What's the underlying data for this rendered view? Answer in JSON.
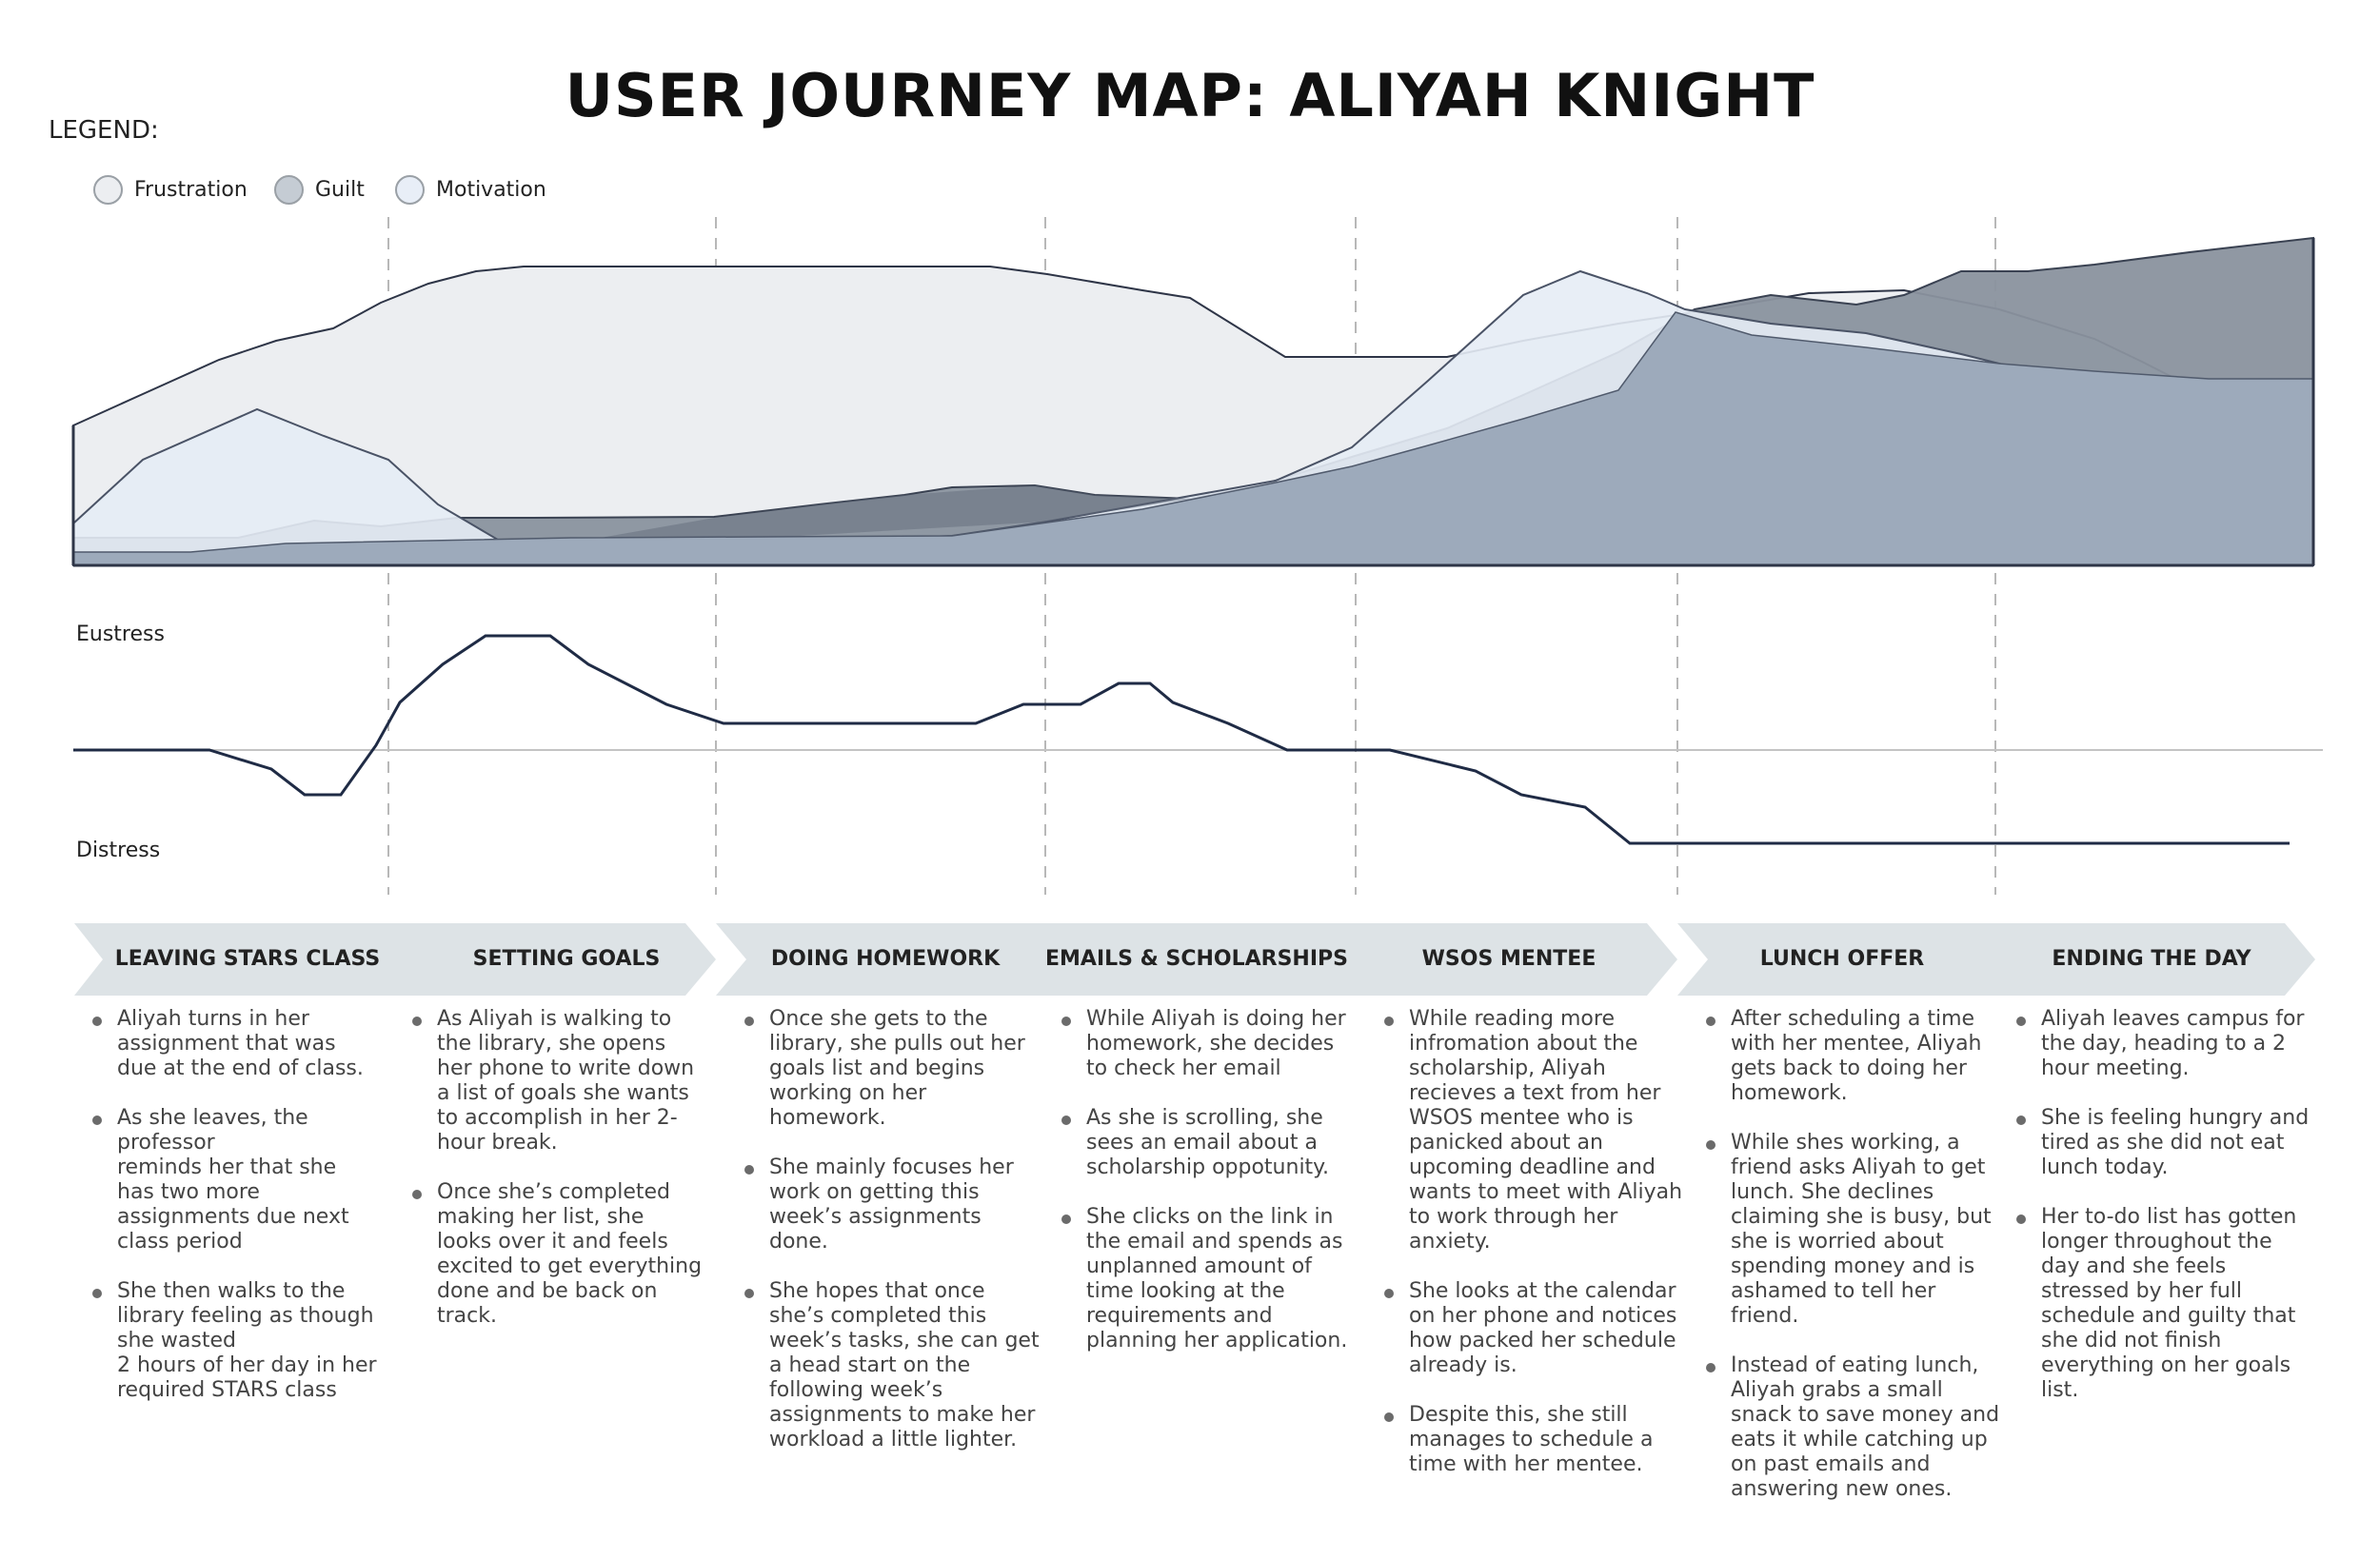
{
  "title": "USER JOURNEY MAP: ALIYAH KNIGHT",
  "legend": {
    "label": "LEGEND:",
    "items": [
      {
        "name": "Frustration",
        "color": "#eceef1"
      },
      {
        "name": "Guilt",
        "color": "#c5ccd4"
      },
      {
        "name": "Motivation",
        "color": "#e8eef7"
      }
    ]
  },
  "stress_axis": {
    "top_label": "Eustress",
    "bottom_label": "Distress"
  },
  "stages": [
    {
      "label": "LEAVING STARS CLASS",
      "bullets": [
        "Aliyah turns in her assignment that was due at the end of class.",
        "As she leaves, the professor\nreminds her that she has two more assignments due next class period",
        "She then walks to the library feeling as though she wasted\n2 hours of her day in her required STARS class"
      ]
    },
    {
      "label": "SETTING GOALS",
      "bullets": [
        "As Aliyah is walking to the library, she opens her phone to write down a list of goals she wants to accomplish in her 2-hour break.",
        "Once she’s completed making her list, she looks over it and feels excited to get everything done and be back on track."
      ]
    },
    {
      "label": "DOING HOMEWORK",
      "bullets": [
        "Once she gets to the library, she pulls out her goals list and begins working on her homework.",
        "She mainly focuses her work on getting this week’s assignments done.",
        "She hopes that once she’s completed this week’s tasks, she can get a head start on the following week’s assignments to make her workload a little lighter."
      ]
    },
    {
      "label": "EMAILS & SCHOLARSHIPS",
      "bullets": [
        "While Aliyah is doing her homework, she decides to check her email",
        "As she is scrolling, she sees an email about a scholarship oppotunity.",
        "She clicks on the link in the email and spends as unplanned amount of time looking at the requirements and planning her application."
      ]
    },
    {
      "label": "WSOS MENTEE",
      "bullets": [
        "While reading more infromation about the scholarship, Aliyah recieves a text from her WSOS mentee who is panicked about an upcoming deadline and wants to meet with Aliyah to work through her anxiety.",
        "She looks at the calendar on her phone and notices how packed her schedule already is.",
        "Despite this, she still manages to schedule a time with her mentee."
      ]
    },
    {
      "label": "LUNCH OFFER",
      "bullets": [
        "After scheduling a time with her mentee, Aliyah gets back to doing her homework.",
        "While shes working, a friend asks Aliyah to get lunch.  She declines claiming she is busy, but she is worried about spending money and is ashamed to tell her friend.",
        "Instead of eating lunch, Aliyah grabs a small snack to save money and eats it while catching up on past emails and answering new ones."
      ]
    },
    {
      "label": "ENDING THE DAY",
      "bullets": [
        "Aliyah leaves campus for the day, heading to a 2 hour meeting.",
        "She is feeling hungry and tired as she did not eat lunch today.",
        "Her to-do list has gotten longer throughout the day and she feels stressed by her full schedule and guilty that she did not finish everything on her goals list."
      ]
    }
  ]
}
